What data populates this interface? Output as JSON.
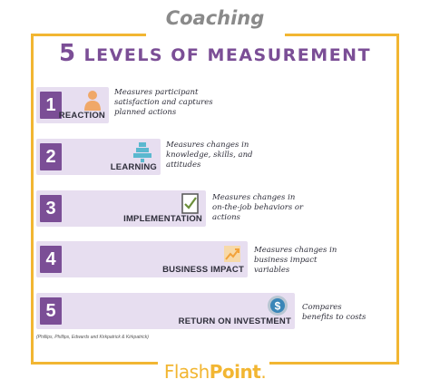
{
  "header": {
    "brand_italic": "Coaching",
    "title_number": "5",
    "title_text": "LEVELS OF MEASUREMENT"
  },
  "levels": [
    {
      "number": "1",
      "label": "REACTION",
      "icon": "person-icon",
      "description": "Measures participant\nsatisfaction and captures\nplanned actions"
    },
    {
      "number": "2",
      "label": "LEARNING",
      "icon": "pyramid-stack-icon",
      "description": "Measures changes in\nknowledge, skills, and\nattitudes"
    },
    {
      "number": "3",
      "label": "IMPLEMENTATION",
      "icon": "checklist-icon",
      "description": "Measures changes in\non-the-job behaviors or\nactions"
    },
    {
      "number": "4",
      "label": "BUSINESS IMPACT",
      "icon": "growth-chart-icon",
      "description": "Measures changes in\nbusiness impact\nvariables"
    },
    {
      "number": "5",
      "label": "RETURN ON INVESTMENT",
      "icon": "dollar-coin-icon",
      "description": "Compares\nbenefits to costs"
    }
  ],
  "citation": "(Phillips, Phillips, Edwards and Kirkpatrick & Kirkpatrick)",
  "footer": {
    "brand_part1": "Flash",
    "brand_part2": "Point",
    "brand_dot": "."
  },
  "colors": {
    "accent": "#7b4e96",
    "frame": "#f2b632",
    "box": "#e7def0"
  }
}
